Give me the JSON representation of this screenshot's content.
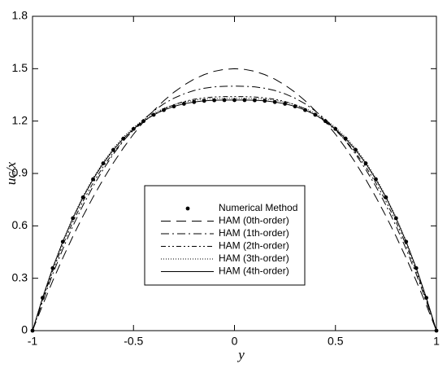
{
  "chart_data": {
    "type": "line",
    "x_label": "y",
    "y_label": "uc/x",
    "x": [
      -1,
      -0.95,
      -0.9,
      -0.85,
      -0.8,
      -0.75,
      -0.7,
      -0.65,
      -0.6,
      -0.55,
      -0.5,
      -0.45,
      -0.4,
      -0.35,
      -0.3,
      -0.25,
      -0.2,
      -0.15,
      -0.1,
      -0.05,
      0,
      0.05,
      0.1,
      0.15,
      0.2,
      0.25,
      0.3,
      0.35,
      0.4,
      0.45,
      0.5,
      0.55,
      0.6,
      0.65,
      0.7,
      0.75,
      0.8,
      0.85,
      0.9,
      0.95,
      1
    ],
    "series": [
      {
        "name": "Numerical Method",
        "color": "#000000",
        "style": "dots",
        "values": [
          0,
          0.188,
          0.358,
          0.509,
          0.644,
          0.763,
          0.867,
          0.958,
          1.035,
          1.1,
          1.155,
          1.2,
          1.236,
          1.263,
          1.284,
          1.299,
          1.309,
          1.316,
          1.319,
          1.32,
          1.32,
          1.32,
          1.319,
          1.316,
          1.309,
          1.299,
          1.284,
          1.263,
          1.236,
          1.2,
          1.155,
          1.1,
          1.035,
          0.958,
          0.867,
          0.763,
          0.644,
          0.509,
          0.358,
          0.188,
          0
        ]
      },
      {
        "name": "HAM (0th-order)",
        "color": "#000000",
        "style": "12,7",
        "values": [
          0,
          0.146,
          0.285,
          0.416,
          0.54,
          0.656,
          0.765,
          0.866,
          0.96,
          1.046,
          1.125,
          1.196,
          1.26,
          1.316,
          1.365,
          1.406,
          1.44,
          1.466,
          1.485,
          1.496,
          1.5,
          1.496,
          1.485,
          1.466,
          1.44,
          1.406,
          1.365,
          1.316,
          1.26,
          1.196,
          1.125,
          1.046,
          0.96,
          0.866,
          0.765,
          0.656,
          0.54,
          0.416,
          0.285,
          0.146,
          0
        ]
      },
      {
        "name": "HAM (1th-order)",
        "color": "#000000",
        "style": "10,4,2,4",
        "values": [
          0,
          0.168,
          0.324,
          0.467,
          0.599,
          0.718,
          0.826,
          0.923,
          1.01,
          1.086,
          1.153,
          1.21,
          1.258,
          1.299,
          1.331,
          1.356,
          1.375,
          1.388,
          1.396,
          1.399,
          1.4,
          1.399,
          1.396,
          1.388,
          1.375,
          1.356,
          1.331,
          1.299,
          1.258,
          1.21,
          1.153,
          1.086,
          1.01,
          0.923,
          0.826,
          0.718,
          0.599,
          0.467,
          0.324,
          0.168,
          0
        ]
      },
      {
        "name": "HAM (2th-order)",
        "color": "#000000",
        "style": "6,3,2,3,2,3",
        "values": [
          0,
          0.179,
          0.342,
          0.49,
          0.623,
          0.741,
          0.846,
          0.939,
          1.019,
          1.089,
          1.148,
          1.197,
          1.237,
          1.269,
          1.294,
          1.312,
          1.325,
          1.333,
          1.338,
          1.34,
          1.34,
          1.34,
          1.338,
          1.333,
          1.325,
          1.312,
          1.294,
          1.269,
          1.237,
          1.197,
          1.148,
          1.089,
          1.019,
          0.939,
          0.846,
          0.741,
          0.623,
          0.49,
          0.342,
          0.179,
          0
        ]
      },
      {
        "name": "HAM (3th-order)",
        "color": "#000000",
        "style": "1,2",
        "values": [
          0,
          0.19,
          0.36,
          0.513,
          0.649,
          0.769,
          0.874,
          0.965,
          1.043,
          1.109,
          1.164,
          1.209,
          1.245,
          1.273,
          1.294,
          1.309,
          1.319,
          1.326,
          1.329,
          1.33,
          1.33,
          1.33,
          1.329,
          1.326,
          1.319,
          1.309,
          1.294,
          1.273,
          1.245,
          1.209,
          1.164,
          1.109,
          1.043,
          0.965,
          0.874,
          0.769,
          0.649,
          0.513,
          0.36,
          0.19,
          0
        ]
      },
      {
        "name": "HAM (4th-order)",
        "color": "#000000",
        "style": "solid",
        "values": [
          0,
          0.188,
          0.358,
          0.509,
          0.644,
          0.763,
          0.867,
          0.958,
          1.035,
          1.1,
          1.155,
          1.2,
          1.236,
          1.263,
          1.284,
          1.299,
          1.309,
          1.316,
          1.319,
          1.32,
          1.32,
          1.32,
          1.319,
          1.316,
          1.309,
          1.299,
          1.284,
          1.263,
          1.236,
          1.2,
          1.155,
          1.1,
          1.035,
          0.958,
          0.867,
          0.763,
          0.644,
          0.509,
          0.358,
          0.188,
          0
        ]
      }
    ],
    "xlim": [
      -1,
      1
    ],
    "xticks": [
      -1,
      -0.5,
      0,
      0.5,
      1
    ],
    "ylim": [
      0,
      1.8
    ],
    "yticks": [
      0,
      0.3,
      0.6,
      0.9,
      1.2,
      1.5,
      1.8
    ],
    "legend": "center"
  }
}
